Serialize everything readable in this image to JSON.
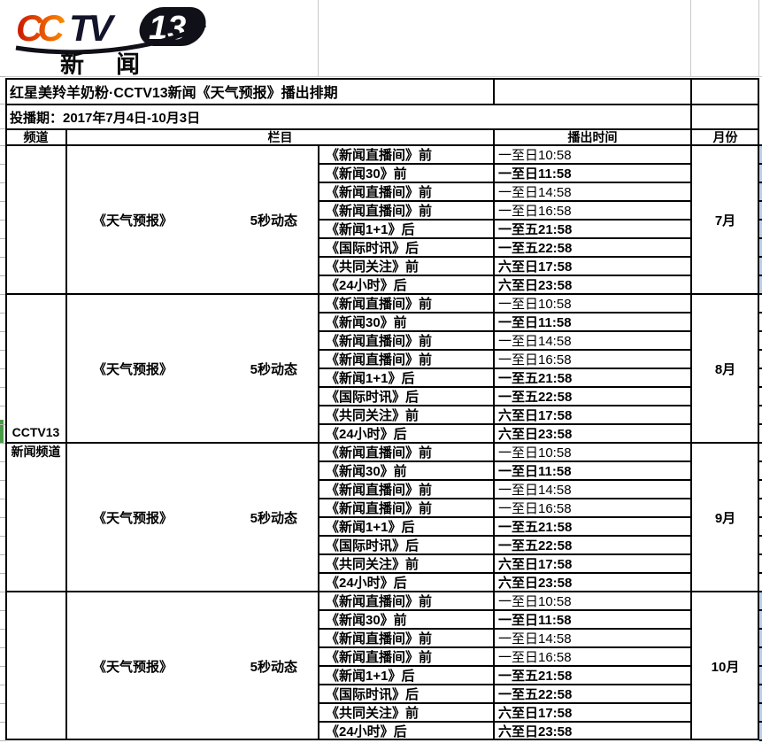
{
  "logo": {
    "cc": "CC",
    "tv": "TV",
    "number": "13",
    "subtitle": "新闻"
  },
  "title": "红星美羚羊奶粉·CCTV13新闻《天气预报》播出排期",
  "period_label": "投播期：2017年7月4日-10月3日",
  "header": {
    "channel": "频道",
    "column": "栏目",
    "time": "播出时间",
    "month": "月份"
  },
  "channel": {
    "line1": "CCTV13",
    "line2": "新闻频道"
  },
  "blocks": [
    {
      "program": "《天气预报》",
      "format": "5秒动态",
      "month": "7月",
      "side_fill": true,
      "rows": [
        {
          "slot": "《新闻直播间》前",
          "time": "一至日10:58",
          "bold": false
        },
        {
          "slot": "《新闻30》前",
          "time": "一至日11:58",
          "bold": true
        },
        {
          "slot": "《新闻直播间》前",
          "time": "一至日14:58",
          "bold": false
        },
        {
          "slot": "《新闻直播间》前",
          "time": "一至日16:58",
          "bold": false
        },
        {
          "slot": "《新闻1+1》后",
          "time": "一至五21:58",
          "bold": true
        },
        {
          "slot": "《国际时讯》后",
          "time": "一至五22:58",
          "bold": true
        },
        {
          "slot": "《共同关注》前",
          "time": "六至日17:58",
          "bold": true
        },
        {
          "slot": "《24小时》后",
          "time": "六至日23:58",
          "bold": true
        }
      ]
    },
    {
      "program": "《天气预报》",
      "format": "5秒动态",
      "month": "8月",
      "side_fill": false,
      "rows": [
        {
          "slot": "《新闻直播间》前",
          "time": "一至日10:58",
          "bold": false
        },
        {
          "slot": "《新闻30》前",
          "time": "一至日11:58",
          "bold": true
        },
        {
          "slot": "《新闻直播间》前",
          "time": "一至日14:58",
          "bold": false
        },
        {
          "slot": "《新闻直播间》前",
          "time": "一至日16:58",
          "bold": false
        },
        {
          "slot": "《新闻1+1》后",
          "time": "一至五21:58",
          "bold": true
        },
        {
          "slot": "《国际时讯》后",
          "time": "一至五22:58",
          "bold": true
        },
        {
          "slot": "《共同关注》前",
          "time": "六至日17:58",
          "bold": true
        },
        {
          "slot": "《24小时》后",
          "time": "六至日23:58",
          "bold": true
        }
      ]
    },
    {
      "program": "《天气预报》",
      "format": "5秒动态",
      "month": "9月",
      "side_fill": false,
      "rows": [
        {
          "slot": "《新闻直播间》前",
          "time": "一至日10:58",
          "bold": false
        },
        {
          "slot": "《新闻30》前",
          "time": "一至日11:58",
          "bold": true
        },
        {
          "slot": "《新闻直播间》前",
          "time": "一至日14:58",
          "bold": false
        },
        {
          "slot": "《新闻直播间》前",
          "time": "一至日16:58",
          "bold": false
        },
        {
          "slot": "《新闻1+1》后",
          "time": "一至五21:58",
          "bold": true
        },
        {
          "slot": "《国际时讯》后",
          "time": "一至五22:58",
          "bold": true
        },
        {
          "slot": "《共同关注》前",
          "time": "六至日17:58",
          "bold": true
        },
        {
          "slot": "《24小时》后",
          "time": "六至日23:58",
          "bold": true
        }
      ]
    },
    {
      "program": "《天气预报》",
      "format": "5秒动态",
      "month": "10月",
      "side_fill": true,
      "rows": [
        {
          "slot": "《新闻直播间》前",
          "time": "一至日10:58",
          "bold": false
        },
        {
          "slot": "《新闻30》前",
          "time": "一至日11:58",
          "bold": true
        },
        {
          "slot": "《新闻直播间》前",
          "time": "一至日14:58",
          "bold": false
        },
        {
          "slot": "《新闻直播间》前",
          "time": "一至日16:58",
          "bold": false
        },
        {
          "slot": "《新闻1+1》后",
          "time": "一至五21:58",
          "bold": true
        },
        {
          "slot": "《国际时讯》后",
          "time": "一至五22:58",
          "bold": true
        },
        {
          "slot": "《共同关注》前",
          "time": "六至日17:58",
          "bold": true
        },
        {
          "slot": "《24小时》后",
          "time": "六至日23:58",
          "bold": true
        }
      ]
    }
  ],
  "colors": {
    "sliver_blue": "#bccfe8",
    "marker_green": "#4a9b45",
    "logo_red_start": "#c81600",
    "logo_red_end": "#ff8a00",
    "logo_dark": "#14142b",
    "grid_black": "#000000"
  }
}
